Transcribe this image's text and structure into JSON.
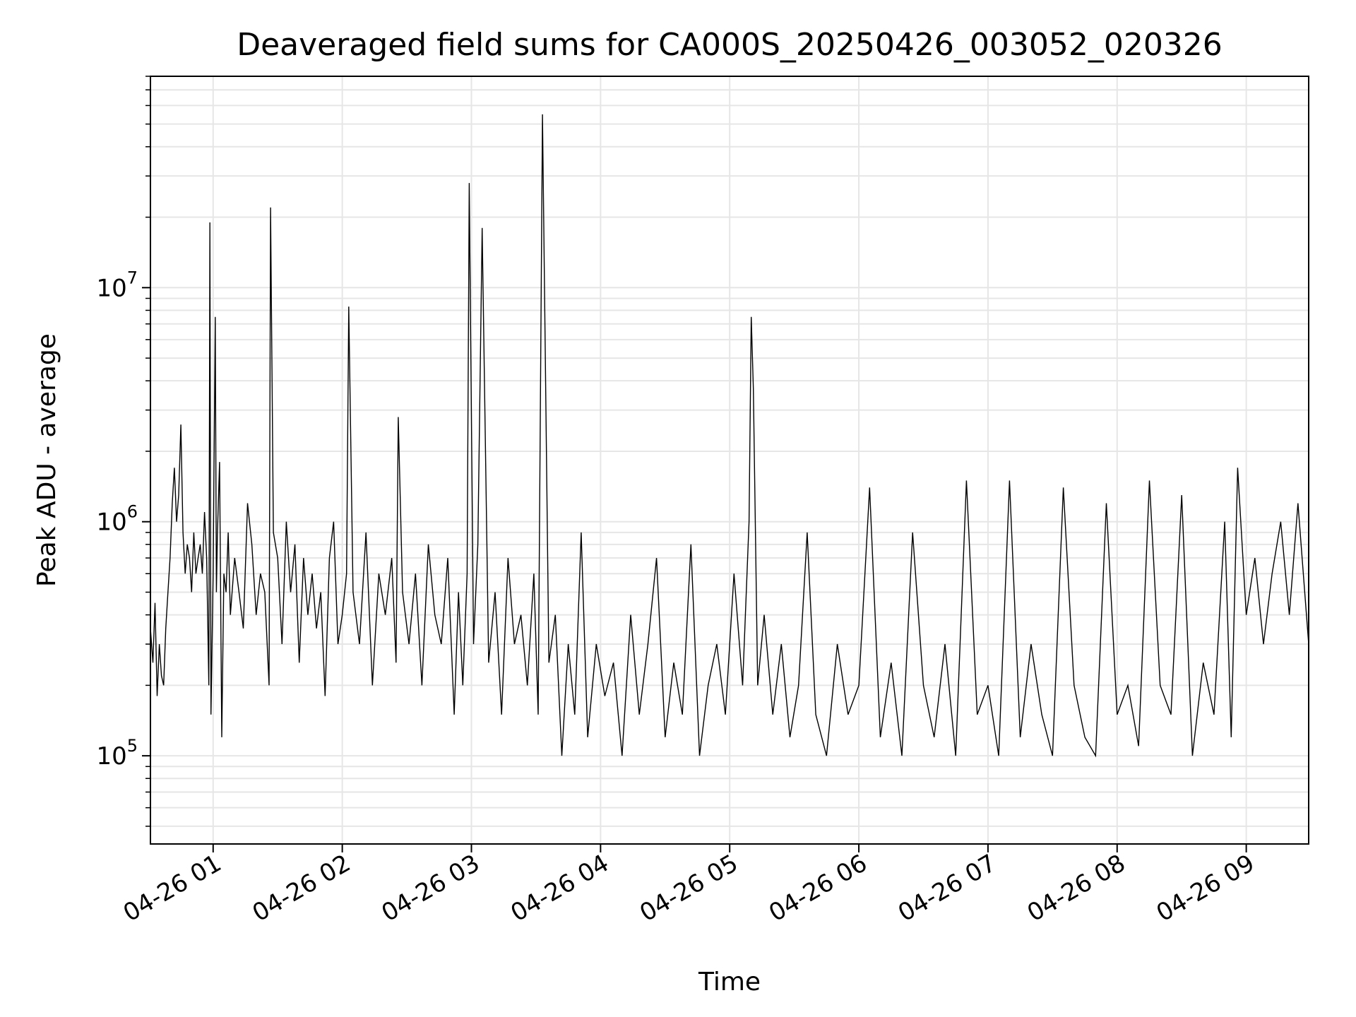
{
  "chart_data": {
    "type": "line",
    "title": "Deaveraged field sums for CA000S_20250426_003052_020326",
    "xlabel": "Time",
    "ylabel": "Peak ADU - average",
    "yscale": "log",
    "ylim": [
      42000,
      80000000
    ],
    "xlim": [
      "2025-04-26T00:30:52",
      "2025-04-26T09:29:00"
    ],
    "grid": true,
    "line_color": "#000000",
    "grid_color": "#e6e6e6",
    "x_ticks": [
      {
        "t": "2025-04-26T01:00:00",
        "label": "04-26 01"
      },
      {
        "t": "2025-04-26T02:00:00",
        "label": "04-26 02"
      },
      {
        "t": "2025-04-26T03:00:00",
        "label": "04-26 03"
      },
      {
        "t": "2025-04-26T04:00:00",
        "label": "04-26 04"
      },
      {
        "t": "2025-04-26T05:00:00",
        "label": "04-26 05"
      },
      {
        "t": "2025-04-26T06:00:00",
        "label": "04-26 06"
      },
      {
        "t": "2025-04-26T07:00:00",
        "label": "04-26 07"
      },
      {
        "t": "2025-04-26T08:00:00",
        "label": "04-26 08"
      },
      {
        "t": "2025-04-26T09:00:00",
        "label": "04-26 09"
      }
    ],
    "y_ticks": [
      {
        "value": 100000,
        "base": "10",
        "exp": "5"
      },
      {
        "value": 1000000,
        "base": "10",
        "exp": "6"
      },
      {
        "value": 10000000,
        "base": "10",
        "exp": "7"
      }
    ],
    "series": [
      {
        "x": [
          "2025-04-26T00:30:52",
          "2025-04-26T00:32:00",
          "2025-04-26T00:33:00",
          "2025-04-26T00:34:00",
          "2025-04-26T00:35:00",
          "2025-04-26T00:36:00",
          "2025-04-26T00:37:00",
          "2025-04-26T00:38:00",
          "2025-04-26T00:39:00",
          "2025-04-26T00:40:00",
          "2025-04-26T00:41:00",
          "2025-04-26T00:42:00",
          "2025-04-26T00:43:00",
          "2025-04-26T00:44:00",
          "2025-04-26T00:45:00",
          "2025-04-26T00:46:00",
          "2025-04-26T00:47:00",
          "2025-04-26T00:48:00",
          "2025-04-26T00:49:00",
          "2025-04-26T00:50:00",
          "2025-04-26T00:51:00",
          "2025-04-26T00:52:00",
          "2025-04-26T00:53:00",
          "2025-04-26T00:54:00",
          "2025-04-26T00:55:00",
          "2025-04-26T00:56:00",
          "2025-04-26T00:57:00",
          "2025-04-26T00:58:00",
          "2025-04-26T00:58:30",
          "2025-04-26T00:59:00",
          "2025-04-26T01:00:00",
          "2025-04-26T01:01:00",
          "2025-04-26T01:01:30",
          "2025-04-26T01:02:00",
          "2025-04-26T01:03:00",
          "2025-04-26T01:04:00",
          "2025-04-26T01:05:00",
          "2025-04-26T01:06:00",
          "2025-04-26T01:07:00",
          "2025-04-26T01:08:00",
          "2025-04-26T01:10:00",
          "2025-04-26T01:12:00",
          "2025-04-26T01:14:00",
          "2025-04-26T01:16:00",
          "2025-04-26T01:18:00",
          "2025-04-26T01:20:00",
          "2025-04-26T01:22:00",
          "2025-04-26T01:24:00",
          "2025-04-26T01:26:00",
          "2025-04-26T01:26:40",
          "2025-04-26T01:28:00",
          "2025-04-26T01:30:00",
          "2025-04-26T01:32:00",
          "2025-04-26T01:34:00",
          "2025-04-26T01:36:00",
          "2025-04-26T01:38:00",
          "2025-04-26T01:40:00",
          "2025-04-26T01:42:00",
          "2025-04-26T01:44:00",
          "2025-04-26T01:46:00",
          "2025-04-26T01:48:00",
          "2025-04-26T01:50:00",
          "2025-04-26T01:52:00",
          "2025-04-26T01:54:00",
          "2025-04-26T01:56:00",
          "2025-04-26T01:58:00",
          "2025-04-26T02:00:00",
          "2025-04-26T02:02:00",
          "2025-04-26T02:03:00",
          "2025-04-26T02:05:00",
          "2025-04-26T02:08:00",
          "2025-04-26T02:11:00",
          "2025-04-26T02:14:00",
          "2025-04-26T02:17:00",
          "2025-04-26T02:20:00",
          "2025-04-26T02:23:00",
          "2025-04-26T02:25:00",
          "2025-04-26T02:26:00",
          "2025-04-26T02:28:00",
          "2025-04-26T02:31:00",
          "2025-04-26T02:34:00",
          "2025-04-26T02:37:00",
          "2025-04-26T02:40:00",
          "2025-04-26T02:43:00",
          "2025-04-26T02:46:00",
          "2025-04-26T02:49:00",
          "2025-04-26T02:52:00",
          "2025-04-26T02:54:00",
          "2025-04-26T02:56:00",
          "2025-04-26T02:58:00",
          "2025-04-26T02:59:00",
          "2025-04-26T03:01:00",
          "2025-04-26T03:03:00",
          "2025-04-26T03:05:00",
          "2025-04-26T03:08:00",
          "2025-04-26T03:11:00",
          "2025-04-26T03:14:00",
          "2025-04-26T03:17:00",
          "2025-04-26T03:20:00",
          "2025-04-26T03:23:00",
          "2025-04-26T03:26:00",
          "2025-04-26T03:29:00",
          "2025-04-26T03:31:00",
          "2025-04-26T03:33:00",
          "2025-04-26T03:36:00",
          "2025-04-26T03:39:00",
          "2025-04-26T03:42:00",
          "2025-04-26T03:45:00",
          "2025-04-26T03:48:00",
          "2025-04-26T03:51:00",
          "2025-04-26T03:54:00",
          "2025-04-26T03:58:00",
          "2025-04-26T04:02:00",
          "2025-04-26T04:06:00",
          "2025-04-26T04:10:00",
          "2025-04-26T04:14:00",
          "2025-04-26T04:18:00",
          "2025-04-26T04:22:00",
          "2025-04-26T04:26:00",
          "2025-04-26T04:30:00",
          "2025-04-26T04:34:00",
          "2025-04-26T04:38:00",
          "2025-04-26T04:42:00",
          "2025-04-26T04:46:00",
          "2025-04-26T04:50:00",
          "2025-04-26T04:54:00",
          "2025-04-26T04:58:00",
          "2025-04-26T05:02:00",
          "2025-04-26T05:06:00",
          "2025-04-26T05:09:00",
          "2025-04-26T05:10:00",
          "2025-04-26T05:11:00",
          "2025-04-26T05:13:00",
          "2025-04-26T05:16:00",
          "2025-04-26T05:20:00",
          "2025-04-26T05:24:00",
          "2025-04-26T05:28:00",
          "2025-04-26T05:32:00",
          "2025-04-26T05:36:00",
          "2025-04-26T05:40:00",
          "2025-04-26T05:45:00",
          "2025-04-26T05:50:00",
          "2025-04-26T05:55:00",
          "2025-04-26T06:00:00",
          "2025-04-26T06:05:00",
          "2025-04-26T06:10:00",
          "2025-04-26T06:15:00",
          "2025-04-26T06:20:00",
          "2025-04-26T06:25:00",
          "2025-04-26T06:30:00",
          "2025-04-26T06:35:00",
          "2025-04-26T06:40:00",
          "2025-04-26T06:45:00",
          "2025-04-26T06:50:00",
          "2025-04-26T06:55:00",
          "2025-04-26T07:00:00",
          "2025-04-26T07:05:00",
          "2025-04-26T07:10:00",
          "2025-04-26T07:15:00",
          "2025-04-26T07:20:00",
          "2025-04-26T07:25:00",
          "2025-04-26T07:30:00",
          "2025-04-26T07:35:00",
          "2025-04-26T07:40:00",
          "2025-04-26T07:45:00",
          "2025-04-26T07:50:00",
          "2025-04-26T07:55:00",
          "2025-04-26T08:00:00",
          "2025-04-26T08:05:00",
          "2025-04-26T08:10:00",
          "2025-04-26T08:15:00",
          "2025-04-26T08:20:00",
          "2025-04-26T08:25:00",
          "2025-04-26T08:30:00",
          "2025-04-26T08:35:00",
          "2025-04-26T08:40:00",
          "2025-04-26T08:45:00",
          "2025-04-26T08:50:00",
          "2025-04-26T08:53:00",
          "2025-04-26T08:56:00",
          "2025-04-26T09:00:00",
          "2025-04-26T09:04:00",
          "2025-04-26T09:08:00",
          "2025-04-26T09:12:00",
          "2025-04-26T09:16:00",
          "2025-04-26T09:20:00",
          "2025-04-26T09:24:00",
          "2025-04-26T09:29:00"
        ],
        "y": [
          350000,
          250000,
          450000,
          180000,
          300000,
          220000,
          200000,
          350000,
          500000,
          700000,
          1200000,
          1700000,
          1000000,
          1300000,
          2600000,
          900000,
          600000,
          800000,
          700000,
          500000,
          900000,
          600000,
          700000,
          800000,
          600000,
          1100000,
          700000,
          200000,
          19000000,
          150000,
          600000,
          7500000,
          500000,
          900000,
          1800000,
          120000,
          600000,
          500000,
          900000,
          400000,
          700000,
          500000,
          350000,
          1200000,
          800000,
          400000,
          600000,
          500000,
          200000,
          22000000,
          900000,
          700000,
          300000,
          1000000,
          500000,
          800000,
          250000,
          700000,
          400000,
          600000,
          350000,
          500000,
          180000,
          700000,
          1000000,
          300000,
          400000,
          600000,
          8300000,
          500000,
          300000,
          900000,
          200000,
          600000,
          400000,
          700000,
          250000,
          2800000,
          500000,
          300000,
          600000,
          200000,
          800000,
          400000,
          300000,
          700000,
          150000,
          500000,
          200000,
          600000,
          28000000,
          300000,
          800000,
          18000000,
          250000,
          500000,
          150000,
          700000,
          300000,
          400000,
          200000,
          600000,
          150000,
          55000000,
          250000,
          400000,
          100000,
          300000,
          150000,
          900000,
          120000,
          300000,
          180000,
          250000,
          100000,
          400000,
          150000,
          300000,
          700000,
          120000,
          250000,
          150000,
          800000,
          100000,
          200000,
          300000,
          150000,
          600000,
          200000,
          1000000,
          7500000,
          3700000,
          200000,
          400000,
          150000,
          300000,
          120000,
          200000,
          900000,
          150000,
          100000,
          300000,
          150000,
          200000,
          1400000,
          120000,
          250000,
          100000,
          900000,
          200000,
          120000,
          300000,
          100000,
          1500000,
          150000,
          200000,
          100000,
          1500000,
          120000,
          300000,
          150000,
          100000,
          1400000,
          200000,
          120000,
          100000,
          1200000,
          150000,
          200000,
          110000,
          1500000,
          200000,
          150000,
          1300000,
          100000,
          250000,
          150000,
          1000000,
          120000,
          1700000,
          400000,
          700000,
          300000,
          600000,
          1000000,
          400000,
          1200000,
          300000
        ]
      }
    ]
  }
}
